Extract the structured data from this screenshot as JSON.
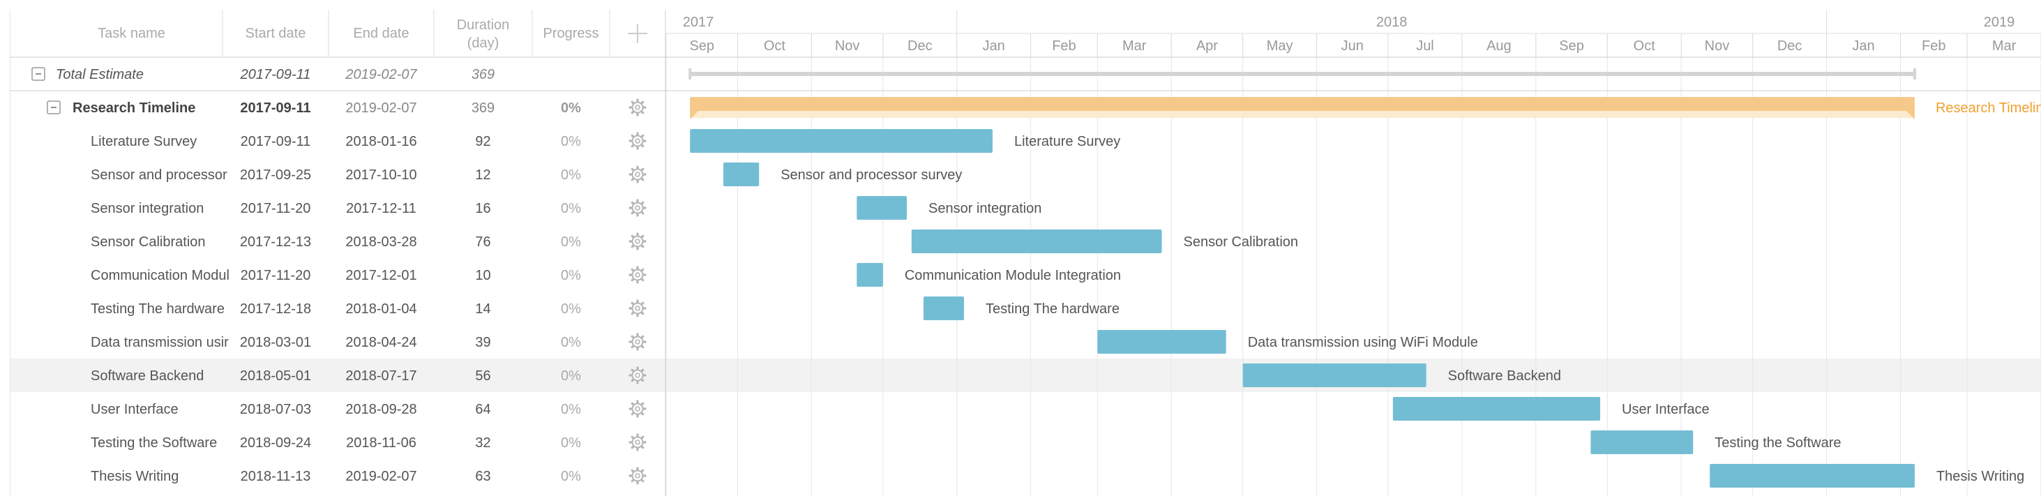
{
  "grid": {
    "columns": [
      {
        "key": "name",
        "label": "Task name"
      },
      {
        "key": "start",
        "label": "Start date"
      },
      {
        "key": "end",
        "label": "End date"
      },
      {
        "key": "duration",
        "label": "Duration",
        "sublabel": "(day)"
      },
      {
        "key": "progress",
        "label": "Progress"
      }
    ],
    "add_icon": "plus-icon",
    "row_icon": "gear-icon",
    "collapse_icon": "minus-box-icon"
  },
  "timeline": {
    "years": [
      {
        "label": "2017",
        "start": "2017-09-01",
        "end": "2018-01-01"
      },
      {
        "label": "2018",
        "start": "2018-01-01",
        "end": "2019-01-01"
      },
      {
        "label": "2019",
        "start": "2019-01-01",
        "end": "2019-04-01"
      }
    ],
    "months": [
      "Sep",
      "Oct",
      "Nov",
      "Dec",
      "Jan",
      "Feb",
      "Mar",
      "Apr",
      "May",
      "Jun",
      "Jul",
      "Aug",
      "Sep",
      "Oct",
      "Nov",
      "Dec",
      "Jan",
      "Feb",
      "Mar"
    ],
    "range_start": "2017-09-01",
    "range_end": "2019-04-01"
  },
  "summary": {
    "name": "Total Estimate",
    "start": "2017-09-11",
    "end": "2019-02-07",
    "duration": "369"
  },
  "project": {
    "name": "Research Timeline",
    "start": "2017-09-11",
    "end": "2019-02-07",
    "duration": "369",
    "progress": "0%",
    "bar_label": "Research Timeline"
  },
  "tasks": [
    {
      "name": "Literature Survey",
      "full_name": "Literature Survey",
      "start": "2017-09-11",
      "end": "2018-01-16",
      "duration": "92",
      "progress": "0%"
    },
    {
      "name": "Sensor and processor",
      "full_name": "Sensor and processor survey",
      "start": "2017-09-25",
      "end": "2017-10-10",
      "duration": "12",
      "progress": "0%"
    },
    {
      "name": "Sensor integration",
      "full_name": "Sensor integration",
      "start": "2017-11-20",
      "end": "2017-12-11",
      "duration": "16",
      "progress": "0%"
    },
    {
      "name": "Sensor Calibration",
      "full_name": "Sensor Calibration",
      "start": "2017-12-13",
      "end": "2018-03-28",
      "duration": "76",
      "progress": "0%"
    },
    {
      "name": "Communication Modul",
      "full_name": "Communication Module Integration",
      "start": "2017-11-20",
      "end": "2017-12-01",
      "duration": "10",
      "progress": "0%"
    },
    {
      "name": "Testing The hardware",
      "full_name": "Testing The hardware",
      "start": "2017-12-18",
      "end": "2018-01-04",
      "duration": "14",
      "progress": "0%"
    },
    {
      "name": "Data transmission usir",
      "full_name": "Data transmission using WiFi Module",
      "start": "2018-03-01",
      "end": "2018-04-24",
      "duration": "39",
      "progress": "0%"
    },
    {
      "name": "Software Backend",
      "full_name": "Software Backend",
      "start": "2018-05-01",
      "end": "2018-07-17",
      "duration": "56",
      "progress": "0%",
      "highlighted": true
    },
    {
      "name": "User Interface",
      "full_name": "User Interface",
      "start": "2018-07-03",
      "end": "2018-09-28",
      "duration": "64",
      "progress": "0%"
    },
    {
      "name": "Testing the Software",
      "full_name": "Testing the Software",
      "start": "2018-09-24",
      "end": "2018-11-06",
      "duration": "32",
      "progress": "0%"
    },
    {
      "name": "Thesis Writing",
      "full_name": "Thesis Writing",
      "start": "2018-11-13",
      "end": "2019-02-07",
      "duration": "63",
      "progress": "0%"
    }
  ],
  "colors": {
    "task_bar": "#73bdd4",
    "project_bar": "#f6c98a",
    "project_bar_light": "#fdebd0",
    "project_label": "#f0a030",
    "summary_bar": "#d4d4d4",
    "row_highlight": "#f2f2f2",
    "grid_line": "#e6e6e6",
    "border": "#cccccc"
  }
}
